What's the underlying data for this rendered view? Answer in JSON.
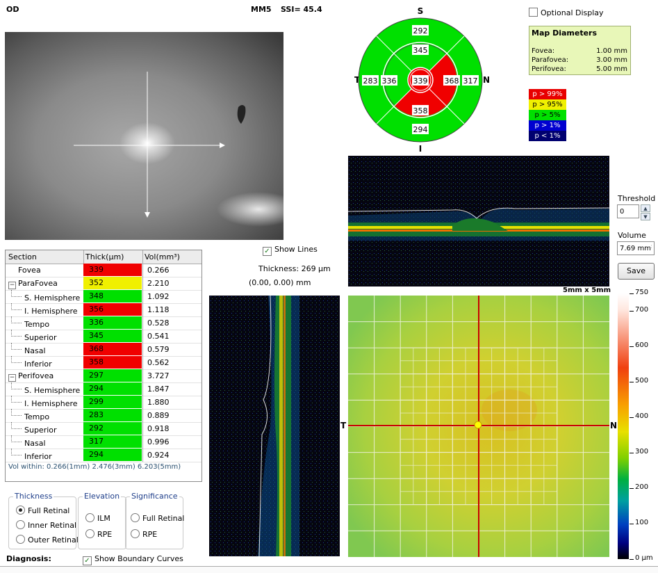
{
  "header": {
    "eye": "OD",
    "mode": "MM5",
    "ssi": "SSI= 45.4"
  },
  "sector_map": {
    "S": "S",
    "I": "I",
    "T": "T",
    "N": "N",
    "outer_sup": "292",
    "outer_inf": "294",
    "outer_temp": "283",
    "outer_nasal": "317",
    "inner_sup": "345",
    "inner_inf": "358",
    "inner_temp": "336",
    "inner_nasal": "368",
    "center": "339",
    "colors": {
      "green": "#00e000",
      "red": "#f00000"
    }
  },
  "optional_display": {
    "label": "Optional Display",
    "checked": false
  },
  "map_diameters": {
    "title": "Map Diameters",
    "rows": [
      {
        "name": "Fovea:",
        "value": "1.00 mm"
      },
      {
        "name": "Parafovea:",
        "value": "3.00 mm"
      },
      {
        "name": "Perifovea:",
        "value": "5.00 mm"
      }
    ]
  },
  "significance_legend": [
    {
      "label": "p > 99%",
      "bg": "#e80000",
      "fg": "#ffffff"
    },
    {
      "label": "p > 95%",
      "bg": "#f0f000",
      "fg": "#000000"
    },
    {
      "label": "p > 5%",
      "bg": "#00e000",
      "fg": "#000000"
    },
    {
      "label": "p > 1%",
      "bg": "#0000d0",
      "fg": "#ffffff"
    },
    {
      "label": "p < 1%",
      "bg": "#000070",
      "fg": "#ffffff"
    }
  ],
  "show_lines": {
    "label": "Show Lines",
    "checked": true
  },
  "thickness_readout": "Thickness: 269 µm",
  "coord_readout": "(0.00, 0.00) mm",
  "threshold": {
    "label": "Threshold",
    "value": "0"
  },
  "volume": {
    "label": "Volume",
    "value": "7.69 mm³"
  },
  "save_label": "Save",
  "map_size": "5mm x 5mm",
  "map_axes": {
    "T": "T",
    "N": "N"
  },
  "colorbar": {
    "ticks": [
      {
        "v": 750,
        "label": "750"
      },
      {
        "v": 700,
        "label": "700"
      },
      {
        "v": 600,
        "label": "600"
      },
      {
        "v": 500,
        "label": "500"
      },
      {
        "v": 400,
        "label": "400"
      },
      {
        "v": 300,
        "label": "300"
      },
      {
        "v": 200,
        "label": "200"
      },
      {
        "v": 100,
        "label": "100"
      },
      {
        "v": 0,
        "label": "0 µm"
      }
    ]
  },
  "table": {
    "headers": [
      "Section",
      "Thick(µm)",
      "Vol(mm³)"
    ],
    "rows": [
      {
        "section": "Fovea",
        "level": 0,
        "expander": "",
        "thick": "339",
        "color": "#f00000",
        "vol": "0.266"
      },
      {
        "section": "ParaFovea",
        "level": 0,
        "expander": "−",
        "thick": "352",
        "color": "#f0f000",
        "vol": "2.210"
      },
      {
        "section": "S. Hemisphere",
        "level": 1,
        "expander": "",
        "thick": "348",
        "color": "#00e000",
        "vol": "1.092"
      },
      {
        "section": "I. Hemisphere",
        "level": 1,
        "expander": "",
        "thick": "356",
        "color": "#f00000",
        "vol": "1.118"
      },
      {
        "section": "Tempo",
        "level": 1,
        "expander": "",
        "thick": "336",
        "color": "#00e000",
        "vol": "0.528"
      },
      {
        "section": "Superior",
        "level": 1,
        "expander": "",
        "thick": "345",
        "color": "#00e000",
        "vol": "0.541"
      },
      {
        "section": "Nasal",
        "level": 1,
        "expander": "",
        "thick": "368",
        "color": "#f00000",
        "vol": "0.579"
      },
      {
        "section": "Inferior",
        "level": 1,
        "expander": "",
        "thick": "358",
        "color": "#f00000",
        "vol": "0.562"
      },
      {
        "section": "Perifovea",
        "level": 0,
        "expander": "−",
        "thick": "297",
        "color": "#00e000",
        "vol": "3.727"
      },
      {
        "section": "S. Hemisphere",
        "level": 1,
        "expander": "",
        "thick": "294",
        "color": "#00e000",
        "vol": "1.847"
      },
      {
        "section": "I. Hemisphere",
        "level": 1,
        "expander": "",
        "thick": "299",
        "color": "#00e000",
        "vol": "1.880"
      },
      {
        "section": "Tempo",
        "level": 1,
        "expander": "",
        "thick": "283",
        "color": "#00e000",
        "vol": "0.889"
      },
      {
        "section": "Superior",
        "level": 1,
        "expander": "",
        "thick": "292",
        "color": "#00e000",
        "vol": "0.918"
      },
      {
        "section": "Nasal",
        "level": 1,
        "expander": "",
        "thick": "317",
        "color": "#00e000",
        "vol": "0.996"
      },
      {
        "section": "Inferior",
        "level": 1,
        "expander": "",
        "thick": "294",
        "color": "#00e000",
        "vol": "0.924"
      }
    ],
    "vol_within": "Vol within: 0.266(1mm) 2.476(3mm) 6.203(5mm)"
  },
  "thickness_group": {
    "title": "Thickness",
    "options": [
      "Full Retinal",
      "Inner Retinal",
      "Outer Retinal"
    ],
    "selected": 0
  },
  "elevation_group": {
    "title": "Elevation",
    "options": [
      "ILM",
      "RPE"
    ]
  },
  "significance_group": {
    "title": "Significance",
    "options": [
      "Full Retinal",
      "RPE"
    ]
  },
  "show_boundary": {
    "label": "Show Boundary Curves",
    "checked": true
  },
  "diagnosis_label": "Diagnosis:"
}
